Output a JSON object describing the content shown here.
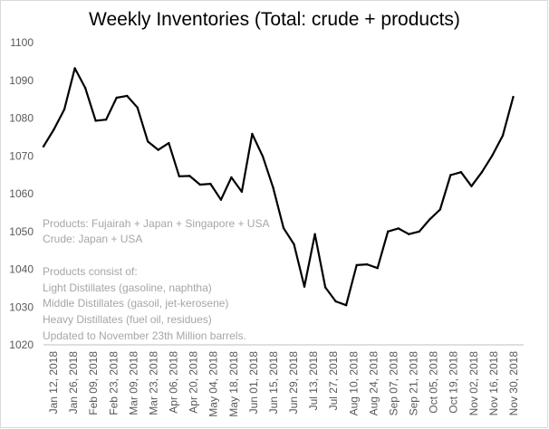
{
  "chart_data": {
    "type": "line",
    "title": "Weekly Inventories (Total: crude + products)",
    "xlabel": "",
    "ylabel": "",
    "ylim": [
      1020,
      1100
    ],
    "yticks": [
      1020,
      1030,
      1040,
      1050,
      1060,
      1070,
      1080,
      1090,
      1100
    ],
    "grid": false,
    "line_color": "#000000",
    "x_tick_labels": [
      "Jan 12, 2018",
      "Jan 26, 2018",
      "Feb 09, 2018",
      "Feb 23, 2018",
      "Mar 09, 2018",
      "Mar 23, 2018",
      "Apr 06, 2018",
      "Apr 20, 2018",
      "May 04, 2018",
      "May 18, 2018",
      "Jun 01, 2018",
      "Jun 15, 2018",
      "Jun 29, 2018",
      "Jul 13, 2018",
      "Jul 27, 2018",
      "Aug 10, 2018",
      "Aug 24, 2018",
      "Sep 07, 2018",
      "Sep 21, 2018",
      "Oct 05, 2018",
      "Oct 19, 2018",
      "Nov 02, 2018",
      "Nov 16, 2018",
      "Nov 30, 2018"
    ],
    "x": [
      "2018-01-12",
      "2018-01-19",
      "2018-01-26",
      "2018-02-02",
      "2018-02-09",
      "2018-02-16",
      "2018-02-23",
      "2018-03-02",
      "2018-03-09",
      "2018-03-16",
      "2018-03-23",
      "2018-03-30",
      "2018-04-06",
      "2018-04-13",
      "2018-04-20",
      "2018-04-27",
      "2018-05-04",
      "2018-05-11",
      "2018-05-18",
      "2018-05-25",
      "2018-06-01",
      "2018-06-08",
      "2018-06-15",
      "2018-06-22",
      "2018-06-29",
      "2018-07-06",
      "2018-07-13",
      "2018-07-20",
      "2018-07-27",
      "2018-08-03",
      "2018-08-10",
      "2018-08-17",
      "2018-08-24",
      "2018-08-31",
      "2018-09-07",
      "2018-09-14",
      "2018-09-21",
      "2018-09-28",
      "2018-10-05",
      "2018-10-12",
      "2018-10-19",
      "2018-10-26",
      "2018-11-02",
      "2018-11-09",
      "2018-11-16",
      "2018-11-23"
    ],
    "series": [
      {
        "values": [
          1072.5,
          1077.0,
          1082.3,
          1093.2,
          1088.0,
          1079.3,
          1079.6,
          1085.4,
          1085.9,
          1082.8,
          1073.8,
          1071.6,
          1073.4,
          1064.6,
          1064.7,
          1062.4,
          1062.6,
          1058.4,
          1064.3,
          1060.5,
          1075.8,
          1069.9,
          1061.6,
          1050.9,
          1046.6,
          1035.4,
          1049.3,
          1035.2,
          1031.5,
          1030.5,
          1041.1,
          1041.3,
          1040.3,
          1050.0,
          1050.8,
          1049.3,
          1050.0,
          1053.2,
          1055.8,
          1064.9,
          1065.7,
          1062.0,
          1065.7,
          1070.1,
          1075.4,
          1085.6
        ]
      }
    ],
    "annotations": [
      "Products: Fujairah + Japan + Singapore  + USA",
      "Crude: Japan + USA",
      "Products consist of:",
      "Light Distillates (gasoline, naphtha)",
      "Middle Distillates (gasoil, jet-kerosene)",
      "Heavy Distillates (fuel oil, residues)",
      "Updated to November 23th Million barrels."
    ]
  }
}
